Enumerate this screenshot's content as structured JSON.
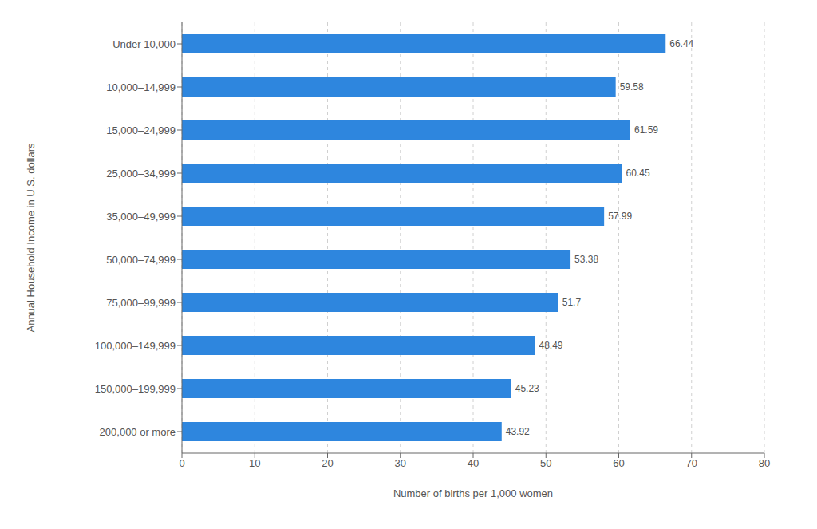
{
  "chart_data": {
    "type": "bar",
    "orientation": "horizontal",
    "categories": [
      "200,000 or more",
      "150,000–199,999",
      "100,000–149,999",
      "75,000–99,999",
      "50,000–74,999",
      "35,000–49,999",
      "25,000–34,999",
      "15,000–24,999",
      "10,000–14,999",
      "Under 10,000"
    ],
    "values": [
      43.92,
      45.23,
      48.49,
      51.7,
      53.38,
      57.99,
      60.45,
      61.59,
      59.58,
      66.44
    ],
    "color": "#2e86de",
    "xlabel": "Number of births per 1,000 women",
    "ylabel": "Annual Household Income in U.S. dollars",
    "xlim": [
      0,
      80
    ],
    "xticks": [
      0,
      10,
      20,
      30,
      40,
      50,
      60,
      70,
      80
    ],
    "grid": true,
    "data_labels": true
  }
}
